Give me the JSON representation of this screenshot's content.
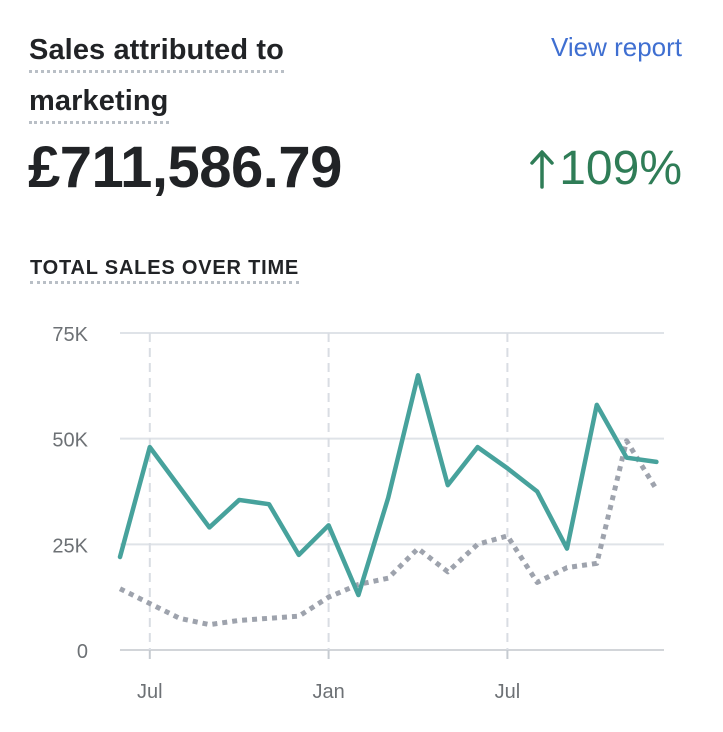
{
  "header": {
    "title_line1": "Sales attributed to",
    "title_line2": "marketing",
    "view_report": "View report",
    "total": "£711,586.79",
    "change": "109%",
    "change_direction": "up"
  },
  "colors": {
    "primary_series": "#47a29c",
    "comparison_series": "#9ea3ad",
    "positive_change": "#2f7d57",
    "link": "#3f6fd1"
  },
  "chart_data": {
    "type": "line",
    "title": "TOTAL SALES OVER TIME",
    "x_ticks": [
      "Jul",
      "Jan",
      "Jul"
    ],
    "y_ticks": [
      "75K",
      "50K",
      "25K",
      "0"
    ],
    "ylim": [
      0,
      75000
    ],
    "grid": true,
    "series": [
      {
        "style": "solid",
        "values": [
          22000,
          48000,
          38500,
          29000,
          35500,
          34500,
          22500,
          29500,
          13000,
          36000,
          65000,
          39000,
          48000,
          43000,
          37500,
          24000,
          58000,
          45500,
          44500
        ]
      },
      {
        "style": "dotted",
        "values": [
          14500,
          11000,
          7500,
          6000,
          7000,
          7500,
          8000,
          12500,
          15500,
          17000,
          24000,
          18500,
          25000,
          27000,
          16000,
          19500,
          20500,
          49500,
          38000
        ]
      }
    ]
  }
}
